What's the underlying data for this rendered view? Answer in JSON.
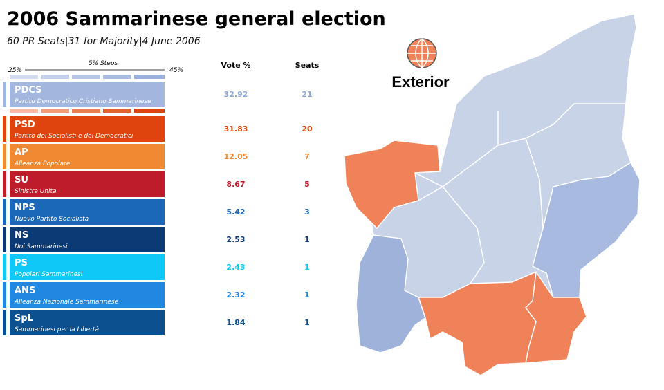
{
  "header": {
    "title": "2006 Sammarinese general election",
    "subtitle": "60 PR Seats|31 for Majority|4 June 2006"
  },
  "scale": {
    "min_label": "25%",
    "step_label": "5% Steps",
    "max_label": "45%"
  },
  "table": {
    "columns": [
      "Vote %",
      "Seats"
    ],
    "rows": [
      {
        "abbr": "PDCS",
        "name": "Partito Democratico Cristiano Sammarinese",
        "vote": 32.92,
        "seats": 21,
        "color": "#a3b7de",
        "text_color": "#8fa8d6"
      },
      {
        "abbr": "PSD",
        "name": "Partito dei Socialisti e dei Democratici",
        "vote": 31.83,
        "seats": 20,
        "color": "#e0440e",
        "text_color": "#e0440e"
      },
      {
        "abbr": "AP",
        "name": "Alleanza Popolare",
        "vote": 12.05,
        "seats": 7,
        "color": "#f08a32",
        "text_color": "#f08a32"
      },
      {
        "abbr": "SU",
        "name": "Sinistra Unita",
        "vote": 8.67,
        "seats": 5,
        "color": "#be1c2a",
        "text_color": "#be1c2a"
      },
      {
        "abbr": "NPS",
        "name": "Nuovo Partito Socialista",
        "vote": 5.42,
        "seats": 3,
        "color": "#1c68b8",
        "text_color": "#1c68b8"
      },
      {
        "abbr": "NS",
        "name": "Noi Sammarinesi",
        "vote": 2.53,
        "seats": 1,
        "color": "#0b3a74",
        "text_color": "#0b3a74"
      },
      {
        "abbr": "PS",
        "name": "Popolari Sammarinesi",
        "vote": 2.43,
        "seats": 1,
        "color": "#10c8f8",
        "text_color": "#10c8f8"
      },
      {
        "abbr": "ANS",
        "name": "Alleanza Nazionale Sammarinese",
        "vote": 2.32,
        "seats": 1,
        "color": "#2088e0",
        "text_color": "#2088e0"
      },
      {
        "abbr": "SpL",
        "name": "Sammarinesi per la Libertà",
        "vote": 1.84,
        "seats": 1,
        "color": "#0c5090",
        "text_color": "#0c5090"
      }
    ]
  },
  "map": {
    "label": "Exterior"
  }
}
